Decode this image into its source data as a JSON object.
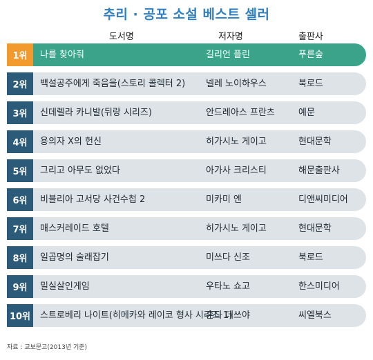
{
  "chart_data": {
    "type": "table",
    "title": "추리 · 공포 소설 베스트 셀러",
    "columns": [
      "도서명",
      "저자명",
      "출판사"
    ],
    "rows": [
      {
        "rank": "1위",
        "title": "나를 찾아줘",
        "author": "길리언 플린",
        "publisher": "푸른숲"
      },
      {
        "rank": "2위",
        "title": "백설공주에게 죽음을(스토리 콜렉터 2)",
        "author": "넬레 노이하우스",
        "publisher": "북로드"
      },
      {
        "rank": "3위",
        "title": "신데렐라 카니발(뒤랑 시리즈)",
        "author": "안드레아스 프란츠",
        "publisher": "예문"
      },
      {
        "rank": "4위",
        "title": "용의자 X의 헌신",
        "author": "히가시노 게이고",
        "publisher": "현대문학"
      },
      {
        "rank": "5위",
        "title": "그리고 아무도 없었다",
        "author": "아가사 크리스티",
        "publisher": "해문출판사"
      },
      {
        "rank": "6위",
        "title": "비블리아 고서당 사건수첩 2",
        "author": "미카미 엔",
        "publisher": "디앤씨미디어"
      },
      {
        "rank": "7위",
        "title": "매스커레이드 호텔",
        "author": "히가시노 게이고",
        "publisher": "현대문학"
      },
      {
        "rank": "8위",
        "title": "일곱명의 술래잡기",
        "author": "미쓰다 신조",
        "publisher": "북로드"
      },
      {
        "rank": "9위",
        "title": "밀실살인게임",
        "author": "우타노 쇼고",
        "publisher": "한스미디어"
      },
      {
        "rank": "10위",
        "title": "스트로베리 나이트(히메카와 레이코 형사 시리즈 1)",
        "author": "혼다 데쓰야",
        "publisher": "씨엘북스"
      }
    ],
    "source": "자료 : 교보문고(2013년 기준)"
  },
  "colors": {
    "title": "#2f7fc0",
    "rank_default": "#2c5a79",
    "rank_top": "#f29a2e",
    "row_default": "#dde3e6",
    "row_top": "#3aa38a"
  }
}
